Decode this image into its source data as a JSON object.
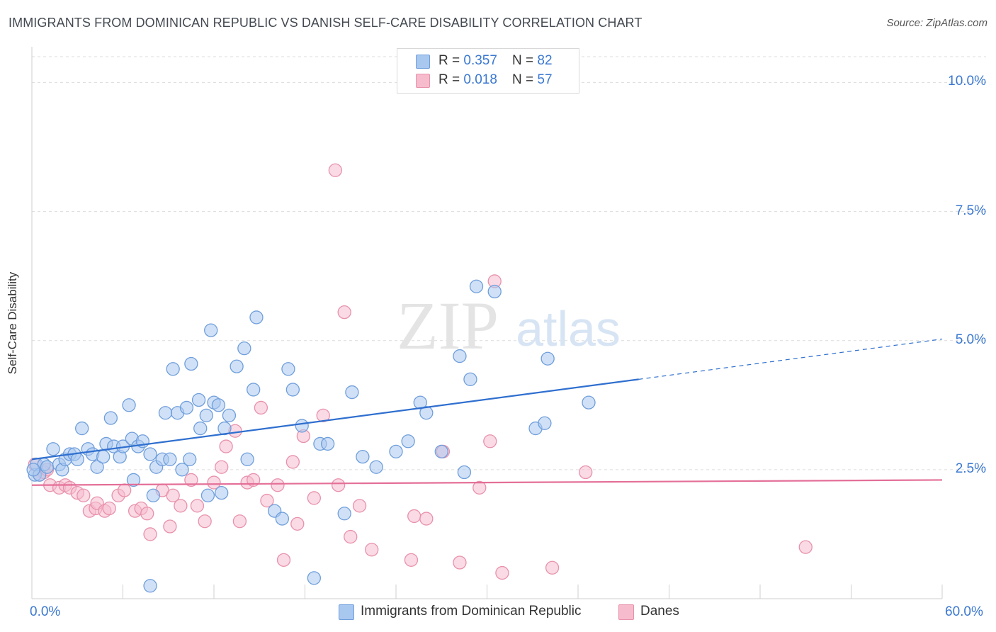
{
  "title": "IMMIGRANTS FROM DOMINICAN REPUBLIC VS DANISH SELF-CARE DISABILITY CORRELATION CHART",
  "source": "Source: ZipAtlas.com",
  "watermark": {
    "zip": "ZIP",
    "atlas": "atlas"
  },
  "legend": {
    "rows": [
      {
        "r_label": "R = ",
        "r_value": "0.357",
        "n_label": "N = ",
        "n_value": "82"
      },
      {
        "r_label": "R = ",
        "r_value": "0.018",
        "n_label": "N = ",
        "n_value": "57"
      }
    ]
  },
  "colors": {
    "blue_fill": "#a9c8f0",
    "blue_stroke": "#6f9edb",
    "blue_line": "#2f6fcf",
    "pink_fill": "#f6bccd",
    "pink_stroke": "#e891ab",
    "pink_line": "#e46f98",
    "axis_text": "#3b78d0",
    "grid": "#dcdcdc"
  },
  "chart_data": {
    "type": "scatter",
    "title": "IMMIGRANTS FROM DOMINICAN REPUBLIC VS DANISH SELF-CARE DISABILITY CORRELATION CHART",
    "xlabel": "",
    "ylabel": "Self-Care Disability",
    "xlim": [
      0,
      60
    ],
    "ylim": [
      0,
      10.5
    ],
    "x_tick_labels": [
      "0.0%",
      "60.0%"
    ],
    "y_ticks": [
      2.5,
      5.0,
      7.5,
      10.0
    ],
    "y_tick_labels": [
      "2.5%",
      "5.0%",
      "7.5%",
      "10.0%"
    ],
    "grid": "horizontal dashed",
    "legend_position": "top-center",
    "series": [
      {
        "name": "Immigrants from Dominican Republic",
        "color": "blue",
        "r": 0.357,
        "n": 82,
        "trend": {
          "x0": 0,
          "y0": 2.7,
          "x1": 40,
          "y1": 4.25,
          "dash_to_x": 60,
          "dash_to_y": 5.03
        },
        "points": [
          [
            0.2,
            2.4
          ],
          [
            0.3,
            2.6
          ],
          [
            0.5,
            2.4
          ],
          [
            0.8,
            2.6
          ],
          [
            1.0,
            2.55
          ],
          [
            1.4,
            2.9
          ],
          [
            1.8,
            2.6
          ],
          [
            2.0,
            2.5
          ],
          [
            2.2,
            2.7
          ],
          [
            2.5,
            2.8
          ],
          [
            2.8,
            2.8
          ],
          [
            3.0,
            2.7
          ],
          [
            3.3,
            3.3
          ],
          [
            3.7,
            2.9
          ],
          [
            4.0,
            2.8
          ],
          [
            4.3,
            2.55
          ],
          [
            4.7,
            2.75
          ],
          [
            4.9,
            3.0
          ],
          [
            5.2,
            3.5
          ],
          [
            5.4,
            2.95
          ],
          [
            5.8,
            2.75
          ],
          [
            6.0,
            2.95
          ],
          [
            6.4,
            3.75
          ],
          [
            6.6,
            3.1
          ],
          [
            6.7,
            2.3
          ],
          [
            7.0,
            2.95
          ],
          [
            7.3,
            3.05
          ],
          [
            7.8,
            0.25
          ],
          [
            7.8,
            2.8
          ],
          [
            8.0,
            2.0
          ],
          [
            8.2,
            2.55
          ],
          [
            8.6,
            2.7
          ],
          [
            8.8,
            3.6
          ],
          [
            9.1,
            2.7
          ],
          [
            9.3,
            4.45
          ],
          [
            9.6,
            3.6
          ],
          [
            9.9,
            2.5
          ],
          [
            10.2,
            3.7
          ],
          [
            10.4,
            2.7
          ],
          [
            10.5,
            4.55
          ],
          [
            11.0,
            3.85
          ],
          [
            11.1,
            3.3
          ],
          [
            11.5,
            3.55
          ],
          [
            11.6,
            2.0
          ],
          [
            11.8,
            5.2
          ],
          [
            12.0,
            3.8
          ],
          [
            12.3,
            3.75
          ],
          [
            12.5,
            2.05
          ],
          [
            12.7,
            3.3
          ],
          [
            13.0,
            3.55
          ],
          [
            13.5,
            4.5
          ],
          [
            14.0,
            4.85
          ],
          [
            14.2,
            2.7
          ],
          [
            14.6,
            4.05
          ],
          [
            14.8,
            5.45
          ],
          [
            16.0,
            1.7
          ],
          [
            16.5,
            1.55
          ],
          [
            16.9,
            4.45
          ],
          [
            17.2,
            4.05
          ],
          [
            17.8,
            3.35
          ],
          [
            18.6,
            0.4
          ],
          [
            19.0,
            3.0
          ],
          [
            19.5,
            3.0
          ],
          [
            20.6,
            1.65
          ],
          [
            21.1,
            4.0
          ],
          [
            21.8,
            2.75
          ],
          [
            22.7,
            2.55
          ],
          [
            24.0,
            2.85
          ],
          [
            24.8,
            3.05
          ],
          [
            25.6,
            3.8
          ],
          [
            26.0,
            3.6
          ],
          [
            27.0,
            2.85
          ],
          [
            28.2,
            4.7
          ],
          [
            28.5,
            2.45
          ],
          [
            28.9,
            4.25
          ],
          [
            29.3,
            6.05
          ],
          [
            30.5,
            5.95
          ],
          [
            33.2,
            3.3
          ],
          [
            33.8,
            3.4
          ],
          [
            34.0,
            4.65
          ],
          [
            36.7,
            3.8
          ],
          [
            0.1,
            2.5
          ]
        ]
      },
      {
        "name": "Danes",
        "color": "pink",
        "r": 0.018,
        "n": 57,
        "trend": {
          "x0": 0,
          "y0": 2.2,
          "x1": 60,
          "y1": 2.3
        },
        "points": [
          [
            0.2,
            2.6
          ],
          [
            0.5,
            2.4
          ],
          [
            0.8,
            2.45
          ],
          [
            1.0,
            2.5
          ],
          [
            1.2,
            2.2
          ],
          [
            1.8,
            2.15
          ],
          [
            2.2,
            2.2
          ],
          [
            2.5,
            2.15
          ],
          [
            3.0,
            2.05
          ],
          [
            3.4,
            2.0
          ],
          [
            3.8,
            1.7
          ],
          [
            4.2,
            1.75
          ],
          [
            4.3,
            1.85
          ],
          [
            4.8,
            1.7
          ],
          [
            5.1,
            1.75
          ],
          [
            5.7,
            2.0
          ],
          [
            6.1,
            2.1
          ],
          [
            6.8,
            1.7
          ],
          [
            7.2,
            1.75
          ],
          [
            7.6,
            1.65
          ],
          [
            7.8,
            1.25
          ],
          [
            8.6,
            2.1
          ],
          [
            9.1,
            1.4
          ],
          [
            9.3,
            2.0
          ],
          [
            9.8,
            1.8
          ],
          [
            10.5,
            2.3
          ],
          [
            10.9,
            1.8
          ],
          [
            11.4,
            1.5
          ],
          [
            12.0,
            2.25
          ],
          [
            12.5,
            2.55
          ],
          [
            12.8,
            2.95
          ],
          [
            13.4,
            3.25
          ],
          [
            13.7,
            1.5
          ],
          [
            14.2,
            2.25
          ],
          [
            14.6,
            2.3
          ],
          [
            15.1,
            3.7
          ],
          [
            15.5,
            1.9
          ],
          [
            16.2,
            2.2
          ],
          [
            16.6,
            0.75
          ],
          [
            17.2,
            2.65
          ],
          [
            17.5,
            1.45
          ],
          [
            17.9,
            3.15
          ],
          [
            18.6,
            1.95
          ],
          [
            19.2,
            3.55
          ],
          [
            20.0,
            8.3
          ],
          [
            20.2,
            2.2
          ],
          [
            20.6,
            5.55
          ],
          [
            21.0,
            1.2
          ],
          [
            21.6,
            1.8
          ],
          [
            22.4,
            0.95
          ],
          [
            25.0,
            0.75
          ],
          [
            25.2,
            1.6
          ],
          [
            26.0,
            1.55
          ],
          [
            27.1,
            2.85
          ],
          [
            28.2,
            0.7
          ],
          [
            29.5,
            2.15
          ],
          [
            30.2,
            3.05
          ]
        ],
        "extra_points": [
          [
            30.5,
            6.15
          ],
          [
            31.0,
            0.5
          ],
          [
            34.3,
            0.6
          ],
          [
            36.5,
            2.45
          ],
          [
            51.0,
            1.0
          ]
        ]
      }
    ]
  }
}
